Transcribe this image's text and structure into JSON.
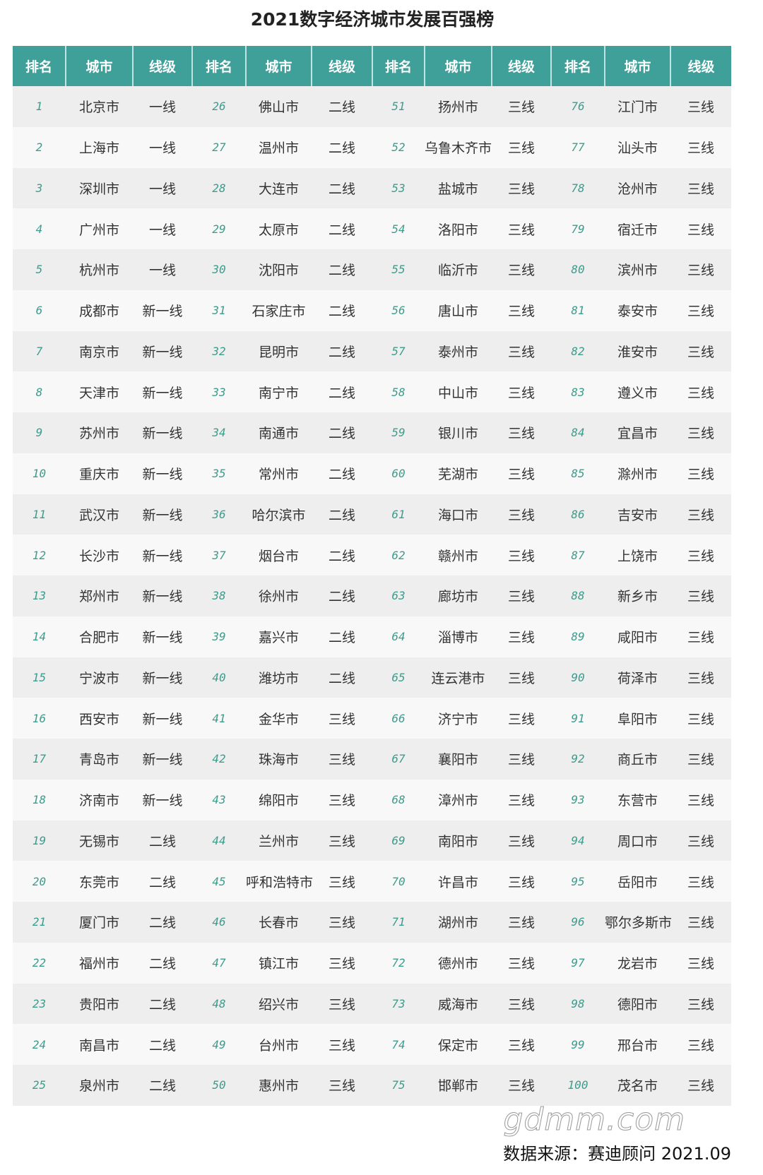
{
  "title": "2021数字经济城市发展百强榜",
  "headers": [
    "排名",
    "城市",
    "线级"
  ],
  "colors": {
    "header": "#3f9f99",
    "rank": "#3d9c8c"
  },
  "rows": [
    [
      "1",
      "北京市",
      "一线"
    ],
    [
      "2",
      "上海市",
      "一线"
    ],
    [
      "3",
      "深圳市",
      "一线"
    ],
    [
      "4",
      "广州市",
      "一线"
    ],
    [
      "5",
      "杭州市",
      "一线"
    ],
    [
      "6",
      "成都市",
      "新一线"
    ],
    [
      "7",
      "南京市",
      "新一线"
    ],
    [
      "8",
      "天津市",
      "新一线"
    ],
    [
      "9",
      "苏州市",
      "新一线"
    ],
    [
      "10",
      "重庆市",
      "新一线"
    ],
    [
      "11",
      "武汉市",
      "新一线"
    ],
    [
      "12",
      "长沙市",
      "新一线"
    ],
    [
      "13",
      "郑州市",
      "新一线"
    ],
    [
      "14",
      "合肥市",
      "新一线"
    ],
    [
      "15",
      "宁波市",
      "新一线"
    ],
    [
      "16",
      "西安市",
      "新一线"
    ],
    [
      "17",
      "青岛市",
      "新一线"
    ],
    [
      "18",
      "济南市",
      "新一线"
    ],
    [
      "19",
      "无锡市",
      "二线"
    ],
    [
      "20",
      "东莞市",
      "二线"
    ],
    [
      "21",
      "厦门市",
      "二线"
    ],
    [
      "22",
      "福州市",
      "二线"
    ],
    [
      "23",
      "贵阳市",
      "二线"
    ],
    [
      "24",
      "南昌市",
      "二线"
    ],
    [
      "25",
      "泉州市",
      "二线"
    ],
    [
      "26",
      "佛山市",
      "二线"
    ],
    [
      "27",
      "温州市",
      "二线"
    ],
    [
      "28",
      "大连市",
      "二线"
    ],
    [
      "29",
      "太原市",
      "二线"
    ],
    [
      "30",
      "沈阳市",
      "二线"
    ],
    [
      "31",
      "石家庄市",
      "二线"
    ],
    [
      "32",
      "昆明市",
      "二线"
    ],
    [
      "33",
      "南宁市",
      "二线"
    ],
    [
      "34",
      "南通市",
      "二线"
    ],
    [
      "35",
      "常州市",
      "二线"
    ],
    [
      "36",
      "哈尔滨市",
      "二线"
    ],
    [
      "37",
      "烟台市",
      "二线"
    ],
    [
      "38",
      "徐州市",
      "二线"
    ],
    [
      "39",
      "嘉兴市",
      "二线"
    ],
    [
      "40",
      "潍坊市",
      "二线"
    ],
    [
      "41",
      "金华市",
      "三线"
    ],
    [
      "42",
      "珠海市",
      "三线"
    ],
    [
      "43",
      "绵阳市",
      "三线"
    ],
    [
      "44",
      "兰州市",
      "三线"
    ],
    [
      "45",
      "呼和浩特市",
      "三线"
    ],
    [
      "46",
      "长春市",
      "三线"
    ],
    [
      "47",
      "镇江市",
      "三线"
    ],
    [
      "48",
      "绍兴市",
      "三线"
    ],
    [
      "49",
      "台州市",
      "三线"
    ],
    [
      "50",
      "惠州市",
      "三线"
    ],
    [
      "51",
      "扬州市",
      "三线"
    ],
    [
      "52",
      "乌鲁木齐市",
      "三线"
    ],
    [
      "53",
      "盐城市",
      "三线"
    ],
    [
      "54",
      "洛阳市",
      "三线"
    ],
    [
      "55",
      "临沂市",
      "三线"
    ],
    [
      "56",
      "唐山市",
      "三线"
    ],
    [
      "57",
      "泰州市",
      "三线"
    ],
    [
      "58",
      "中山市",
      "三线"
    ],
    [
      "59",
      "银川市",
      "三线"
    ],
    [
      "60",
      "芜湖市",
      "三线"
    ],
    [
      "61",
      "海口市",
      "三线"
    ],
    [
      "62",
      "赣州市",
      "三线"
    ],
    [
      "63",
      "廊坊市",
      "三线"
    ],
    [
      "64",
      "淄博市",
      "三线"
    ],
    [
      "65",
      "连云港市",
      "三线"
    ],
    [
      "66",
      "济宁市",
      "三线"
    ],
    [
      "67",
      "襄阳市",
      "三线"
    ],
    [
      "68",
      "漳州市",
      "三线"
    ],
    [
      "69",
      "南阳市",
      "三线"
    ],
    [
      "70",
      "许昌市",
      "三线"
    ],
    [
      "71",
      "湖州市",
      "三线"
    ],
    [
      "72",
      "德州市",
      "三线"
    ],
    [
      "73",
      "威海市",
      "三线"
    ],
    [
      "74",
      "保定市",
      "三线"
    ],
    [
      "75",
      "邯郸市",
      "三线"
    ],
    [
      "76",
      "江门市",
      "三线"
    ],
    [
      "77",
      "汕头市",
      "三线"
    ],
    [
      "78",
      "沧州市",
      "三线"
    ],
    [
      "79",
      "宿迁市",
      "三线"
    ],
    [
      "80",
      "滨州市",
      "三线"
    ],
    [
      "81",
      "泰安市",
      "三线"
    ],
    [
      "82",
      "淮安市",
      "三线"
    ],
    [
      "83",
      "遵义市",
      "三线"
    ],
    [
      "84",
      "宜昌市",
      "三线"
    ],
    [
      "85",
      "滁州市",
      "三线"
    ],
    [
      "86",
      "吉安市",
      "三线"
    ],
    [
      "87",
      "上饶市",
      "三线"
    ],
    [
      "88",
      "新乡市",
      "三线"
    ],
    [
      "89",
      "咸阳市",
      "三线"
    ],
    [
      "90",
      "荷泽市",
      "三线"
    ],
    [
      "91",
      "阜阳市",
      "三线"
    ],
    [
      "92",
      "商丘市",
      "三线"
    ],
    [
      "93",
      "东营市",
      "三线"
    ],
    [
      "94",
      "周口市",
      "三线"
    ],
    [
      "95",
      "岳阳市",
      "三线"
    ],
    [
      "96",
      "鄂尔多斯市",
      "三线"
    ],
    [
      "97",
      "龙岩市",
      "三线"
    ],
    [
      "98",
      "德阳市",
      "三线"
    ],
    [
      "99",
      "邢台市",
      "三线"
    ],
    [
      "100",
      "茂名市",
      "三线"
    ]
  ],
  "watermark": "gdmm.com",
  "source": "数据来源：赛迪顾问 2021.09"
}
